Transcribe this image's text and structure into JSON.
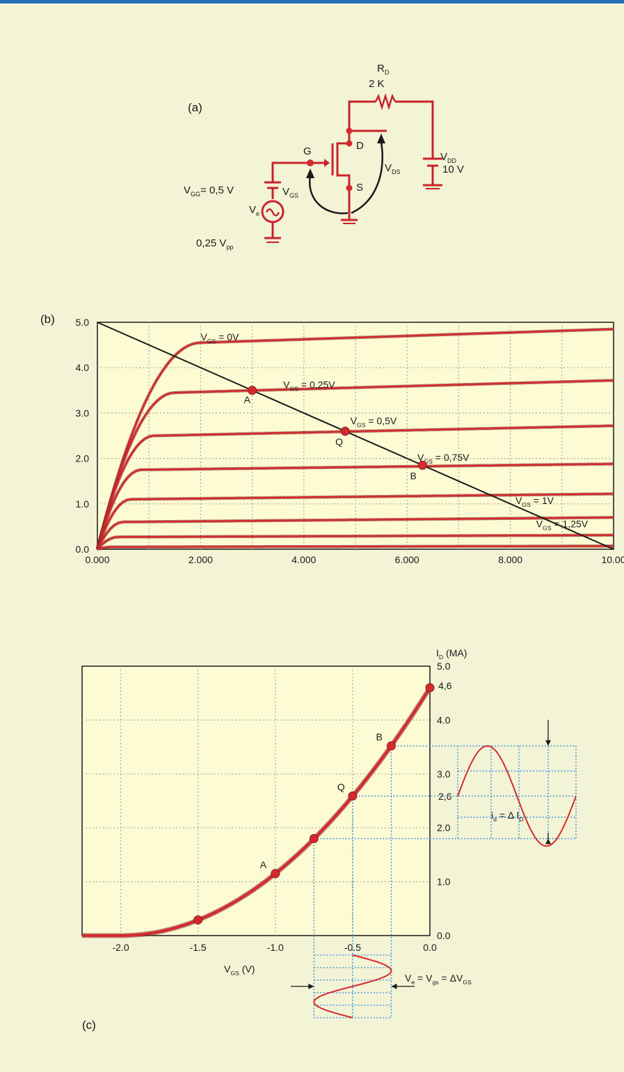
{
  "colors": {
    "page_bg": "#f3f3d6",
    "top_rule": "#1f6fb5",
    "plot_bg": "#fdfbd3",
    "wire": "#c8232a",
    "curve": "#d42a2e",
    "grid": "#a7a7a7",
    "blue_dot": "#4a9fd8",
    "load_line": "#1a1a1a"
  },
  "panel_a": {
    "label": "(a)",
    "rd_name": "R",
    "rd_sub": "D",
    "rd_value": "2 K",
    "node_g": "G",
    "node_d": "D",
    "node_s": "S",
    "vds_name": "V",
    "vds_sub": "DS",
    "vdd_name": "V",
    "vdd_sub": "DD",
    "vdd_value": "10 V",
    "vgg_name": "V",
    "vgg_sub": "GG",
    "vgg_value": "= 0,5 V",
    "vgs_name": "V",
    "vgs_sub": "GS",
    "ve_name": "V",
    "ve_sub": "e",
    "vpp_value": "0,25 V",
    "vpp_sub": "pp",
    "icons": {
      "ac_source": "ac-source-icon",
      "battery": "battery-icon",
      "ground": "ground-icon",
      "resistor": "resistor-icon",
      "mosfet": "mosfet-icon"
    }
  },
  "panel_b": {
    "label": "(b)",
    "chart_data": {
      "type": "line",
      "x_ticks": [
        "0.000",
        "2.000",
        "4.000",
        "6.000",
        "8.000",
        "10.00"
      ],
      "y_ticks": [
        "0.0",
        "1.0",
        "2.0",
        "3.0",
        "4.0",
        "5.0"
      ],
      "xlim": [
        0,
        10
      ],
      "ylim": [
        0,
        5
      ],
      "grid": true,
      "series": [
        {
          "name_main": "V",
          "name_sub": "GS",
          "name_tail": " = 0V",
          "sat": 4.55,
          "end": 4.85,
          "knee": 2.0
        },
        {
          "name_main": "V",
          "name_sub": "GS",
          "name_tail": " = 0,25V",
          "sat": 3.45,
          "end": 3.72,
          "knee": 1.5
        },
        {
          "name_main": "V",
          "name_sub": "GS",
          "name_tail": " = 0,5V",
          "sat": 2.5,
          "end": 2.72,
          "knee": 1.1
        },
        {
          "name_main": "V",
          "name_sub": "GS",
          "name_tail": " = 0,75V",
          "sat": 1.75,
          "end": 1.88,
          "knee": 0.85
        },
        {
          "name_main": "V",
          "name_sub": "GS",
          "name_tail": " = 1V",
          "sat": 1.1,
          "end": 1.22,
          "knee": 0.65
        },
        {
          "name_main": "V",
          "name_sub": "GS",
          "name_tail": " = 1,25V",
          "sat": 0.6,
          "end": 0.7,
          "knee": 0.5
        },
        {
          "sat": 0.27,
          "end": 0.31,
          "knee": 0.4
        },
        {
          "sat": 0.05,
          "end": 0.07,
          "knee": 0.3
        }
      ],
      "load_line": {
        "x": [
          0,
          10
        ],
        "y": [
          5,
          0
        ]
      },
      "points": [
        {
          "label": "A",
          "x": 3.0,
          "y": 3.5
        },
        {
          "label": "Q",
          "x": 4.8,
          "y": 2.6
        },
        {
          "label": "B",
          "x": 6.3,
          "y": 1.85
        }
      ]
    }
  },
  "panel_c": {
    "label": "(c)",
    "chart_data": {
      "type": "line",
      "xlabel_main": "V",
      "xlabel_sub": "GS",
      "xlabel_tail": " (V)",
      "ylabel_main": "I",
      "ylabel_sub": "D",
      "ylabel_tail": " (MA)",
      "x_ticks": [
        "-2.0",
        "-1.5",
        "-1.0",
        "-0.5",
        "0.0"
      ],
      "y_ticks": [
        "0.0",
        "1.0",
        "2.0",
        "3.0",
        "4.0",
        "5.0"
      ],
      "y_marks": [
        "2,6",
        "4,6"
      ],
      "xlim": [
        -2.25,
        0
      ],
      "ylim": [
        0,
        5
      ],
      "grid": true,
      "curve": {
        "vp": -2.0,
        "idss": 4.6
      },
      "points": [
        {
          "label": "",
          "x": -1.5,
          "y": 0.29
        },
        {
          "label": "A",
          "x": -1.0,
          "y": 1.15
        },
        {
          "label": "",
          "x": -0.75,
          "y": 1.8
        },
        {
          "label": "Q",
          "x": -0.5,
          "y": 2.59
        },
        {
          "label": "B",
          "x": -0.25,
          "y": 3.52
        },
        {
          "label": "",
          "x": 0.0,
          "y": 4.6
        }
      ],
      "id_annotation": {
        "main": "i",
        "sub": "d",
        "mid": " = ",
        "delta": "Δ",
        "tail": " I",
        "tail_sub": "D"
      },
      "vgs_annotation": {
        "main": "V",
        "sub": "e",
        "mid": " = V",
        "mid_sub": "gs",
        "eq": " = ",
        "delta": "Δ",
        "tail": "V",
        "tail_sub": "GS"
      }
    }
  }
}
